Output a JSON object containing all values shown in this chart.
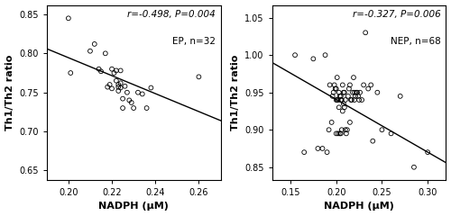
{
  "panel1": {
    "label": "EP, n=32",
    "annot_r": "r",
    "annot_r_val": "=-0.498, ",
    "annot_p": "P",
    "annot_p_val": "=0.004",
    "xlabel": "NADPH (μM)",
    "ylabel": "Th1/Th2 ratio",
    "xlim": [
      0.19,
      0.27
    ],
    "ylim": [
      0.638,
      0.862
    ],
    "xticks": [
      0.2,
      0.22,
      0.24,
      0.26
    ],
    "yticks": [
      0.65,
      0.7,
      0.75,
      0.8,
      0.85
    ],
    "line_x": [
      0.19,
      0.27
    ],
    "line_y": [
      0.806,
      0.714
    ],
    "scatter_x": [
      0.2,
      0.201,
      0.21,
      0.212,
      0.214,
      0.215,
      0.217,
      0.218,
      0.219,
      0.22,
      0.22,
      0.221,
      0.222,
      0.222,
      0.223,
      0.223,
      0.223,
      0.224,
      0.224,
      0.224,
      0.225,
      0.225,
      0.226,
      0.227,
      0.228,
      0.229,
      0.23,
      0.232,
      0.234,
      0.236,
      0.238,
      0.26
    ],
    "scatter_y": [
      0.845,
      0.775,
      0.803,
      0.812,
      0.78,
      0.777,
      0.8,
      0.757,
      0.76,
      0.78,
      0.755,
      0.775,
      0.778,
      0.765,
      0.76,
      0.757,
      0.752,
      0.778,
      0.762,
      0.756,
      0.73,
      0.742,
      0.758,
      0.75,
      0.74,
      0.737,
      0.73,
      0.75,
      0.748,
      0.73,
      0.756,
      0.77
    ]
  },
  "panel2": {
    "label": "NEP, n=68",
    "annot_r": "r",
    "annot_r_val": "=-0.327, ",
    "annot_p": "P",
    "annot_p_val": "=0.006",
    "xlabel": "NADPH (μM)",
    "ylabel": "Th1/Th2 ratio",
    "xlim": [
      0.13,
      0.32
    ],
    "ylim": [
      0.833,
      1.067
    ],
    "xticks": [
      0.15,
      0.2,
      0.25,
      0.3
    ],
    "yticks": [
      0.85,
      0.9,
      0.95,
      1.0,
      1.05
    ],
    "line_x": [
      0.13,
      0.32
    ],
    "line_y": [
      0.99,
      0.856
    ],
    "scatter_x": [
      0.155,
      0.165,
      0.175,
      0.18,
      0.185,
      0.188,
      0.19,
      0.192,
      0.193,
      0.195,
      0.196,
      0.197,
      0.198,
      0.199,
      0.2,
      0.2,
      0.2,
      0.201,
      0.201,
      0.202,
      0.202,
      0.203,
      0.203,
      0.204,
      0.204,
      0.205,
      0.205,
      0.205,
      0.206,
      0.206,
      0.207,
      0.207,
      0.208,
      0.208,
      0.209,
      0.209,
      0.21,
      0.21,
      0.211,
      0.212,
      0.213,
      0.214,
      0.215,
      0.215,
      0.216,
      0.217,
      0.218,
      0.219,
      0.22,
      0.22,
      0.221,
      0.222,
      0.223,
      0.224,
      0.225,
      0.226,
      0.228,
      0.23,
      0.232,
      0.235,
      0.238,
      0.24,
      0.245,
      0.25,
      0.26,
      0.27,
      0.285,
      0.3
    ],
    "scatter_y": [
      1.0,
      0.87,
      0.995,
      0.875,
      0.875,
      1.0,
      0.87,
      0.9,
      0.96,
      0.91,
      0.945,
      0.95,
      0.96,
      0.955,
      0.94,
      0.955,
      0.895,
      0.97,
      0.94,
      0.94,
      0.895,
      0.95,
      0.93,
      0.945,
      0.895,
      0.945,
      0.94,
      0.895,
      0.94,
      0.9,
      0.96,
      0.925,
      0.95,
      0.935,
      0.95,
      0.93,
      0.94,
      0.9,
      0.895,
      0.9,
      0.945,
      0.955,
      0.96,
      0.91,
      0.94,
      0.94,
      0.95,
      0.97,
      0.94,
      0.95,
      0.945,
      0.95,
      0.95,
      0.945,
      0.94,
      0.95,
      0.94,
      0.96,
      1.03,
      0.955,
      0.96,
      0.885,
      0.95,
      0.9,
      0.895,
      0.945,
      0.85,
      0.87
    ]
  },
  "bg_color": "#ffffff",
  "scatter_color": "none",
  "scatter_edge_color": "#000000",
  "scatter_size": 12,
  "line_color": "#000000",
  "line_width": 1.0,
  "tick_fontsize": 7,
  "label_fontsize": 8,
  "annot_fontsize": 7.5
}
